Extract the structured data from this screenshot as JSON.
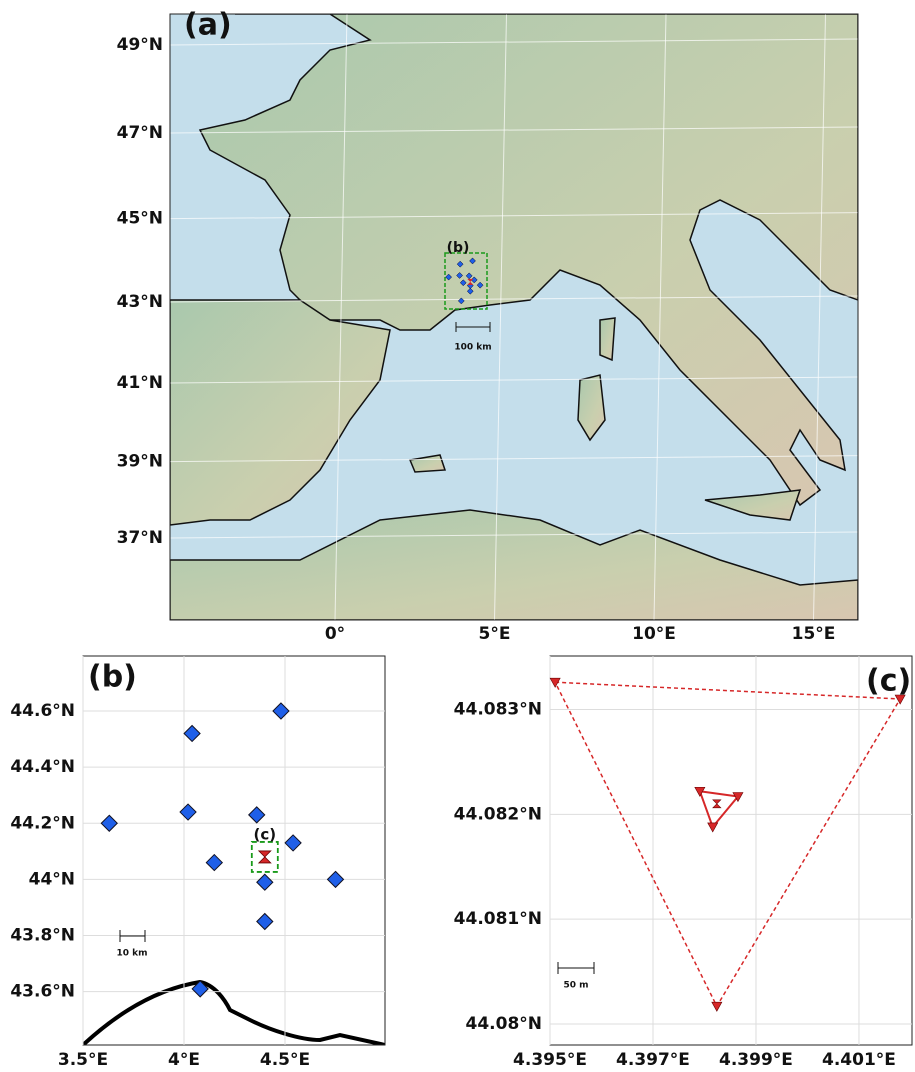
{
  "chart_data": [
    {
      "type": "map",
      "label": "(a)",
      "inset_label": "(b)",
      "scale_bar": "100 km",
      "grid": true,
      "xticks": [
        {
          "value": 0,
          "label": "0°"
        },
        {
          "value": 5,
          "label": "5°E"
        },
        {
          "value": 10,
          "label": "10°E"
        },
        {
          "value": 15,
          "label": "15°E"
        }
      ],
      "yticks": [
        {
          "value": 37,
          "label": "37°N"
        },
        {
          "value": 39,
          "label": "39°N"
        },
        {
          "value": 41,
          "label": "41°N"
        },
        {
          "value": 43,
          "label": "43°N"
        },
        {
          "value": 45,
          "label": "45°N"
        },
        {
          "value": 47,
          "label": "47°N"
        },
        {
          "value": 49,
          "label": "49°N"
        }
      ]
    },
    {
      "type": "scatter",
      "label": "(b)",
      "inset_label": "(c)",
      "scale_bar": "10 km",
      "grid": true,
      "xlim": [
        3.5,
        4.995
      ],
      "ylim": [
        43.41,
        44.796
      ],
      "xticks": [
        {
          "value": 3.5,
          "label": "3.5°E"
        },
        {
          "value": 4,
          "label": "4°E"
        },
        {
          "value": 4.5,
          "label": "4.5°E"
        }
      ],
      "yticks": [
        {
          "value": 43.6,
          "label": "43.6°N"
        },
        {
          "value": 43.8,
          "label": "43.8°N"
        },
        {
          "value": 44,
          "label": "44°N"
        },
        {
          "value": 44.2,
          "label": "44.2°N"
        },
        {
          "value": 44.4,
          "label": "44.4°N"
        },
        {
          "value": 44.6,
          "label": "44.6°N"
        }
      ],
      "stations": {
        "color": "#1f5fe8",
        "x": [
          4.48,
          4.04,
          3.63,
          4.02,
          4.36,
          4.54,
          4.15,
          4.4,
          4.75,
          4.4,
          4.08
        ],
        "y": [
          44.6,
          44.52,
          44.2,
          44.24,
          44.23,
          44.13,
          44.06,
          43.99,
          44.0,
          43.85,
          43.61
        ]
      },
      "center": {
        "color": "#d62728",
        "x": 4.4,
        "y": 44.08
      }
    },
    {
      "type": "scatter",
      "label": "(c)",
      "scale_bar": "50 m",
      "grid": true,
      "xlim": [
        4.395,
        4.40203
      ],
      "ylim": [
        44.0798,
        44.08351
      ],
      "xticks": [
        {
          "value": 4.395,
          "label": "4.395°E"
        },
        {
          "value": 4.397,
          "label": "4.397°E"
        },
        {
          "value": 4.399,
          "label": "4.399°E"
        },
        {
          "value": 4.401,
          "label": "4.401°E"
        }
      ],
      "yticks": [
        {
          "value": 44.08,
          "label": "44.08°N"
        },
        {
          "value": 44.081,
          "label": "44.081°N"
        },
        {
          "value": 44.082,
          "label": "44.082°N"
        },
        {
          "value": 44.083,
          "label": "44.083°N"
        }
      ],
      "outer": {
        "color": "#d62728",
        "x": [
          4.3951,
          4.4018,
          4.39824
        ],
        "y": [
          44.08326,
          44.0831,
          44.08017
        ]
      },
      "inner": {
        "color": "#d62728",
        "x": [
          4.39791,
          4.39865,
          4.39816
        ],
        "y": [
          44.08222,
          44.08217,
          44.08188
        ]
      },
      "center": {
        "color": "#d62728",
        "x": 4.39824,
        "y": 44.0821
      }
    }
  ]
}
